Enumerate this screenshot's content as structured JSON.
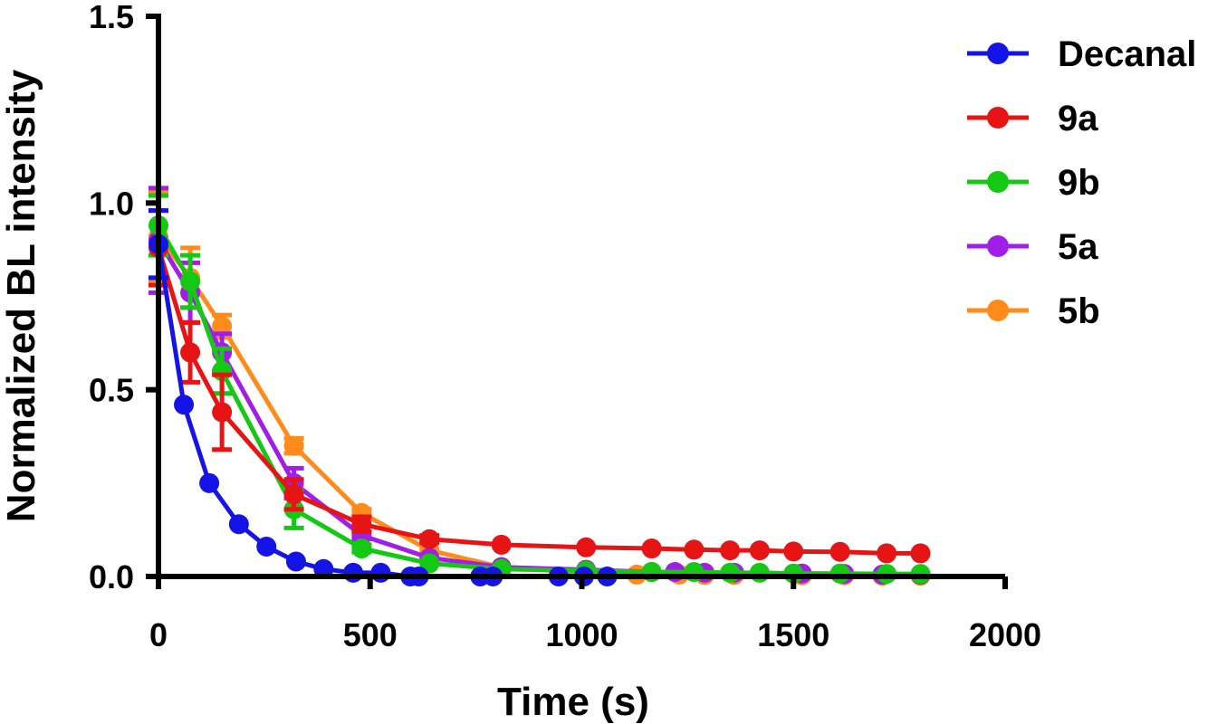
{
  "chart_data": {
    "type": "line",
    "title": "",
    "xlabel": "Time (s)",
    "ylabel": "Normalized BL intensity",
    "xlim": [
      0,
      2000
    ],
    "ylim": [
      0,
      1.5
    ],
    "xticks": [
      "0",
      "500",
      "1000",
      "1500",
      "2000"
    ],
    "yticks": [
      "0.0",
      "0.5",
      "1.0",
      "1.5"
    ],
    "xtick_values": [
      0,
      500,
      1000,
      1500,
      2000
    ],
    "ytick_values": [
      0,
      0.5,
      1.0,
      1.5
    ],
    "grid": false,
    "legend_position": "top-right",
    "series": [
      {
        "name": "Decanal",
        "color": "#1414e6",
        "points": [
          {
            "x": 0,
            "y": 0.89,
            "err": 0.09
          },
          {
            "x": 60,
            "y": 0.46,
            "err": 0
          },
          {
            "x": 120,
            "y": 0.25,
            "err": 0
          },
          {
            "x": 190,
            "y": 0.14,
            "err": 0
          },
          {
            "x": 255,
            "y": 0.08,
            "err": 0
          },
          {
            "x": 325,
            "y": 0.04,
            "err": 0
          },
          {
            "x": 390,
            "y": 0.02,
            "err": 0
          },
          {
            "x": 460,
            "y": 0.01,
            "err": 0
          },
          {
            "x": 525,
            "y": 0.01,
            "err": 0
          },
          {
            "x": 595,
            "y": 0.0,
            "err": 0
          },
          {
            "x": 615,
            "y": 0.0,
            "err": 0
          },
          {
            "x": 760,
            "y": 0.0,
            "err": 0
          },
          {
            "x": 790,
            "y": 0.0,
            "err": 0
          },
          {
            "x": 945,
            "y": 0.0,
            "err": 0
          },
          {
            "x": 1005,
            "y": 0.0,
            "err": 0
          },
          {
            "x": 1060,
            "y": 0.0,
            "err": 0
          }
        ]
      },
      {
        "name": "9a",
        "color": "#e61414",
        "points": [
          {
            "x": 0,
            "y": 0.88,
            "err": 0.1
          },
          {
            "x": 75,
            "y": 0.6,
            "err": 0.08
          },
          {
            "x": 150,
            "y": 0.44,
            "err": 0.1
          },
          {
            "x": 320,
            "y": 0.22,
            "err": 0.04
          },
          {
            "x": 480,
            "y": 0.14,
            "err": 0.02
          },
          {
            "x": 640,
            "y": 0.1,
            "err": 0.01
          },
          {
            "x": 810,
            "y": 0.085,
            "err": 0
          },
          {
            "x": 1010,
            "y": 0.078,
            "err": 0
          },
          {
            "x": 1165,
            "y": 0.075,
            "err": 0
          },
          {
            "x": 1265,
            "y": 0.072,
            "err": 0
          },
          {
            "x": 1350,
            "y": 0.07,
            "err": 0
          },
          {
            "x": 1420,
            "y": 0.07,
            "err": 0
          },
          {
            "x": 1500,
            "y": 0.067,
            "err": 0
          },
          {
            "x": 1610,
            "y": 0.066,
            "err": 0
          },
          {
            "x": 1720,
            "y": 0.062,
            "err": 0
          },
          {
            "x": 1800,
            "y": 0.062,
            "err": 0
          }
        ]
      },
      {
        "name": "9b",
        "color": "#14c814",
        "points": [
          {
            "x": 0,
            "y": 0.94,
            "err": 0.08
          },
          {
            "x": 75,
            "y": 0.79,
            "err": 0.07
          },
          {
            "x": 150,
            "y": 0.55,
            "err": 0.06
          },
          {
            "x": 320,
            "y": 0.18,
            "err": 0.05
          },
          {
            "x": 480,
            "y": 0.075,
            "err": 0.01
          },
          {
            "x": 640,
            "y": 0.035,
            "err": 0
          },
          {
            "x": 810,
            "y": 0.02,
            "err": 0
          },
          {
            "x": 1010,
            "y": 0.015,
            "err": 0
          },
          {
            "x": 1165,
            "y": 0.012,
            "err": 0
          },
          {
            "x": 1265,
            "y": 0.012,
            "err": 0
          },
          {
            "x": 1350,
            "y": 0.01,
            "err": 0
          },
          {
            "x": 1420,
            "y": 0.01,
            "err": 0
          },
          {
            "x": 1500,
            "y": 0.008,
            "err": 0
          },
          {
            "x": 1610,
            "y": 0.008,
            "err": 0
          },
          {
            "x": 1720,
            "y": 0.007,
            "err": 0
          },
          {
            "x": 1800,
            "y": 0.007,
            "err": 0
          }
        ]
      },
      {
        "name": "5a",
        "color": "#a01ee6",
        "points": [
          {
            "x": 0,
            "y": 0.9,
            "err": 0.14
          },
          {
            "x": 75,
            "y": 0.76,
            "err": 0.08
          },
          {
            "x": 150,
            "y": 0.6,
            "err": 0.05
          },
          {
            "x": 320,
            "y": 0.25,
            "err": 0.04
          },
          {
            "x": 480,
            "y": 0.11,
            "err": 0.01
          },
          {
            "x": 640,
            "y": 0.05,
            "err": 0
          },
          {
            "x": 810,
            "y": 0.025,
            "err": 0
          },
          {
            "x": 1010,
            "y": 0.018,
            "err": 0
          },
          {
            "x": 1165,
            "y": 0.012,
            "err": 0
          },
          {
            "x": 1220,
            "y": 0.012,
            "err": 0
          },
          {
            "x": 1290,
            "y": 0.01,
            "err": 0
          },
          {
            "x": 1360,
            "y": 0.01,
            "err": 0
          },
          {
            "x": 1520,
            "y": 0.008,
            "err": 0
          },
          {
            "x": 1620,
            "y": 0.007,
            "err": 0
          },
          {
            "x": 1710,
            "y": 0.005,
            "err": 0
          },
          {
            "x": 1800,
            "y": 0.005,
            "err": 0
          }
        ]
      },
      {
        "name": "5b",
        "color": "#ff8c1a",
        "points": [
          {
            "x": 0,
            "y": 0.91,
            "err": 0.12
          },
          {
            "x": 75,
            "y": 0.8,
            "err": 0.08
          },
          {
            "x": 150,
            "y": 0.67,
            "err": 0.03
          },
          {
            "x": 320,
            "y": 0.35,
            "err": 0.02
          },
          {
            "x": 480,
            "y": 0.17,
            "err": 0.01
          },
          {
            "x": 640,
            "y": 0.07,
            "err": 0
          },
          {
            "x": 810,
            "y": 0.025,
            "err": 0
          },
          {
            "x": 1010,
            "y": 0.01,
            "err": 0
          },
          {
            "x": 1130,
            "y": 0.005,
            "err": 0
          },
          {
            "x": 1230,
            "y": 0.005,
            "err": 0
          },
          {
            "x": 1290,
            "y": 0.004,
            "err": 0
          },
          {
            "x": 1360,
            "y": 0.004,
            "err": 0
          },
          {
            "x": 1520,
            "y": 0.003,
            "err": 0
          },
          {
            "x": 1620,
            "y": 0.003,
            "err": 0
          },
          {
            "x": 1710,
            "y": 0.002,
            "err": 0
          },
          {
            "x": 1800,
            "y": 0.002,
            "err": 0
          }
        ]
      }
    ]
  }
}
